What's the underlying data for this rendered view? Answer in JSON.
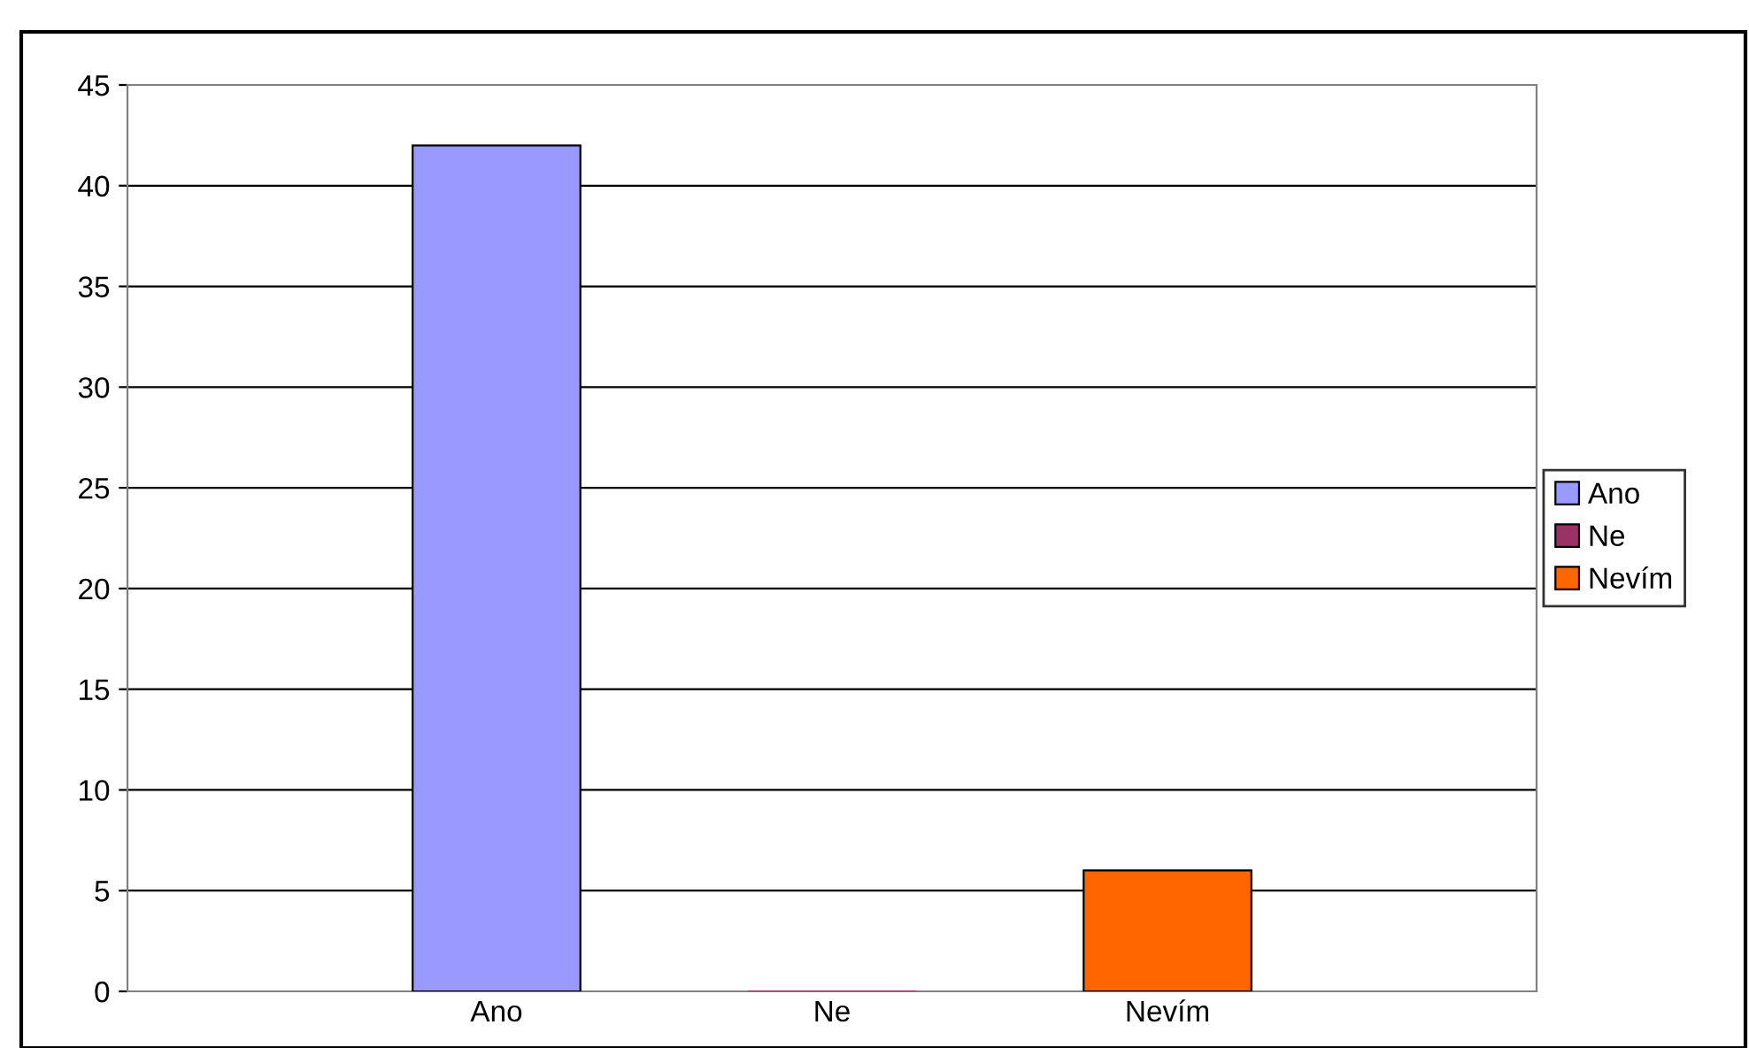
{
  "chart_data": {
    "type": "bar",
    "categories": [
      "Ano",
      "Ne",
      "Nevím"
    ],
    "series": [
      {
        "name": "Ano",
        "color": "#9999ff",
        "values": [
          42,
          null,
          null
        ]
      },
      {
        "name": "Ne",
        "color": "#993366",
        "values": [
          null,
          0,
          null
        ]
      },
      {
        "name": "Nevím",
        "color": "#ff6600",
        "values": [
          null,
          null,
          6
        ]
      }
    ],
    "ylim": [
      0,
      45
    ],
    "yticks": [
      0,
      5,
      10,
      15,
      20,
      25,
      30,
      35,
      40,
      45
    ],
    "grid": "y",
    "legend": "right"
  }
}
